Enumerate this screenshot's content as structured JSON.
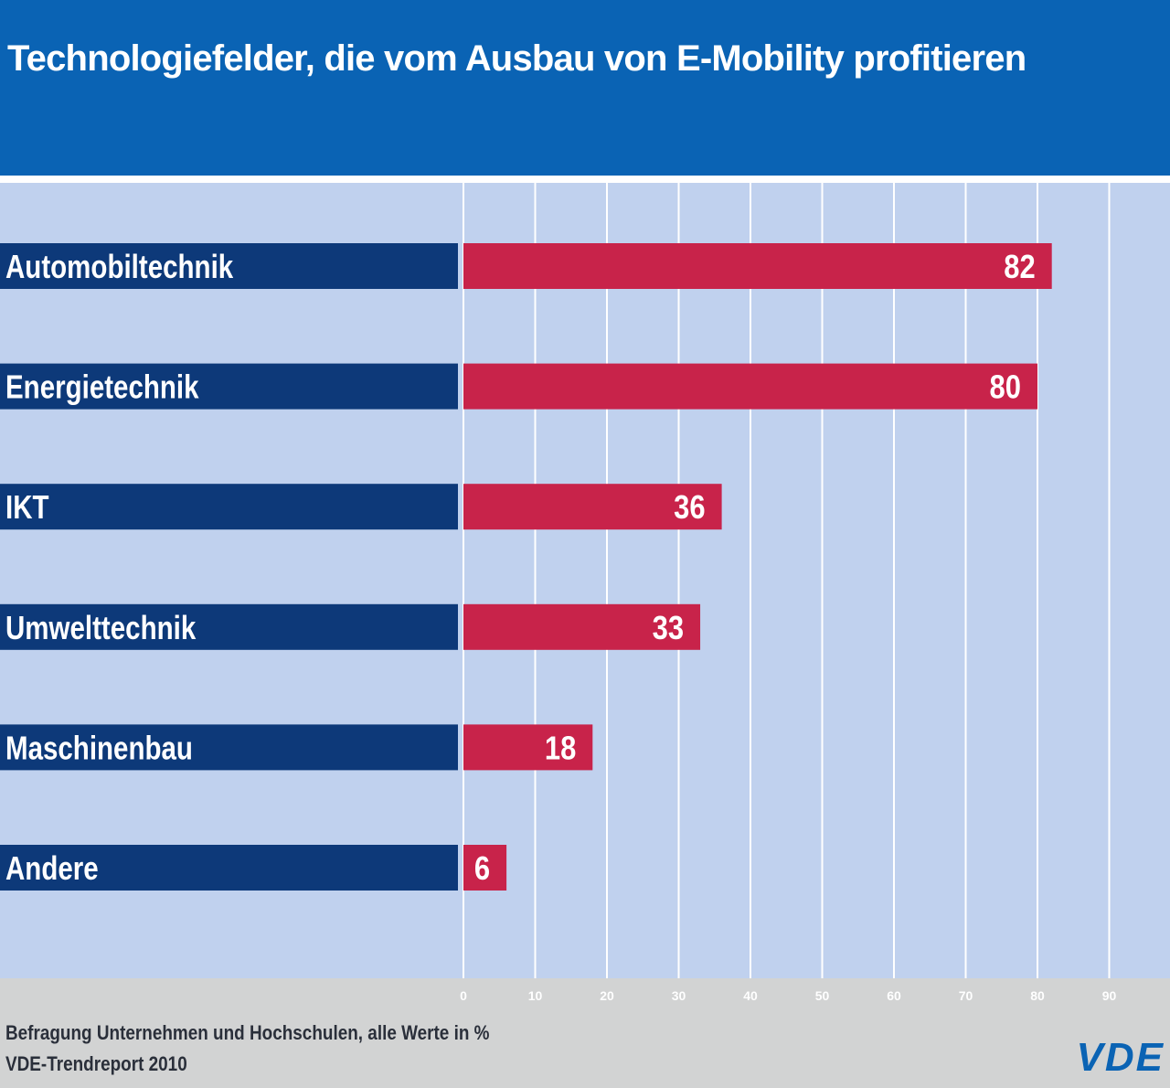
{
  "header": {
    "title": "Technologiefelder, die vom Ausbau von E-Mobility profitieren"
  },
  "chart_data": {
    "type": "bar",
    "orientation": "horizontal",
    "categories": [
      "Automobiltechnik",
      "Energietechnik",
      "IKT",
      "Umwelttechnik",
      "Maschinenbau",
      "Andere"
    ],
    "values": [
      82,
      80,
      36,
      33,
      18,
      6
    ],
    "title": "Technologiefelder, die vom Ausbau von E-Mobility profitieren",
    "xlim": [
      0,
      90
    ],
    "x_ticks": [
      0,
      10,
      20,
      30,
      40,
      50,
      60,
      70,
      80,
      90
    ],
    "grid": true,
    "data_labels": true
  },
  "colors": {
    "header_bg": "#0a63b4",
    "plot_bg": "#c0d1ee",
    "category_bar": "#0d3979",
    "value_bar": "#c8234a",
    "gridline": "#ffffff",
    "footer_bg": "#d2d3d3",
    "tick_label": "#ffffff",
    "logo": "#0a63b4"
  },
  "footer": {
    "note": "Befragung Unternehmen und Hochschulen, alle Werte in %",
    "source": "VDE-Trendreport 2010",
    "logo_text": "VDE"
  }
}
